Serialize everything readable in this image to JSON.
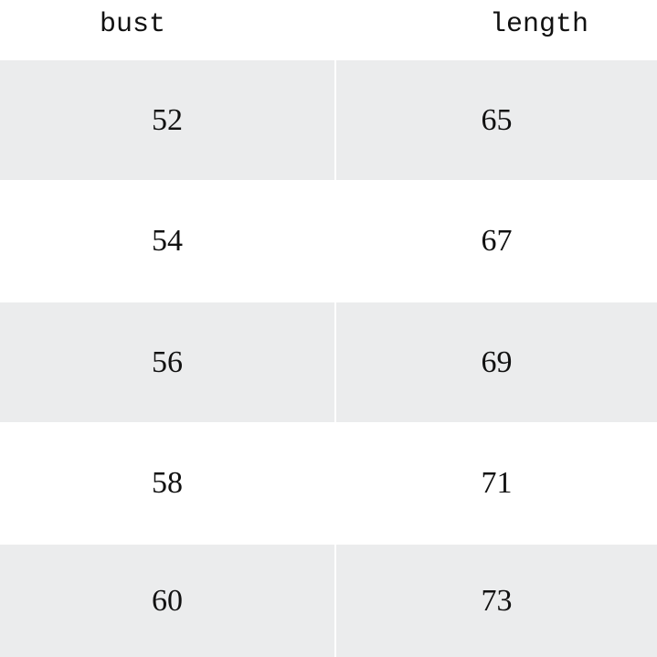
{
  "table": {
    "headers": [
      "bust",
      "length"
    ],
    "rows": [
      [
        "52",
        "65"
      ],
      [
        "54",
        "67"
      ],
      [
        "56",
        "69"
      ],
      [
        "58",
        "71"
      ],
      [
        "60",
        "73"
      ]
    ],
    "stripe_color": "#ebeced"
  }
}
